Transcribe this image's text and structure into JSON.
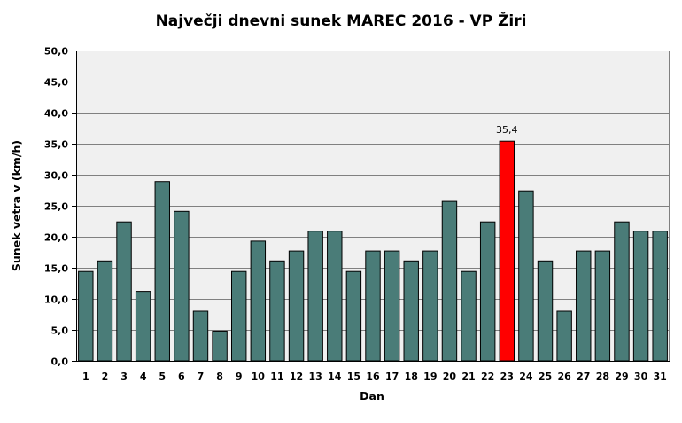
{
  "chart_data": {
    "type": "bar",
    "title": "Največji dnevni sunek MAREC 2016 - VP Žiri",
    "xlabel": "Dan",
    "ylabel": "Sunek vetra  v (km/h)",
    "ylim": [
      0,
      50
    ],
    "yticks": [
      "0,0",
      "5,0",
      "10,0",
      "15,0",
      "20,0",
      "25,0",
      "30,0",
      "35,0",
      "40,0",
      "45,0",
      "50,0"
    ],
    "categories": [
      "1",
      "2",
      "3",
      "4",
      "5",
      "6",
      "7",
      "8",
      "9",
      "10",
      "11",
      "12",
      "13",
      "14",
      "15",
      "16",
      "17",
      "18",
      "19",
      "20",
      "21",
      "22",
      "23",
      "24",
      "25",
      "26",
      "27",
      "28",
      "29",
      "30",
      "31"
    ],
    "values": [
      14.4,
      16.1,
      22.4,
      11.2,
      28.9,
      24.1,
      8.0,
      4.8,
      14.4,
      19.3,
      16.1,
      17.7,
      20.9,
      20.9,
      14.4,
      17.7,
      17.7,
      16.1,
      17.7,
      25.7,
      14.4,
      22.4,
      35.4,
      27.4,
      16.1,
      8.0,
      17.7,
      17.7,
      22.4,
      20.9,
      20.9
    ],
    "highlight_index": 22,
    "data_labels": [
      {
        "index": 22,
        "text": "35,4"
      }
    ],
    "colors": {
      "bar": "#4a7c78",
      "highlight": "#ff0000",
      "plot_bg": "#f0f0f0",
      "grid": "#808080"
    },
    "grid": true,
    "legend": "none"
  }
}
